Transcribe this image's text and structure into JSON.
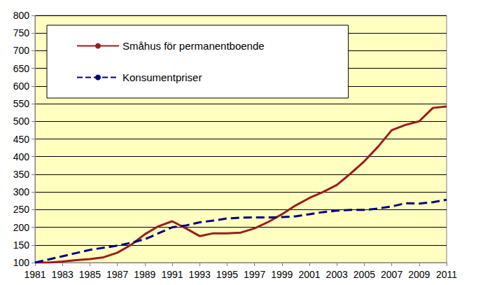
{
  "chart_data": {
    "type": "line",
    "x": [
      1981,
      1982,
      1983,
      1984,
      1985,
      1986,
      1987,
      1988,
      1989,
      1990,
      1991,
      1992,
      1993,
      1994,
      1995,
      1996,
      1997,
      1998,
      1999,
      2000,
      2001,
      2002,
      2003,
      2004,
      2005,
      2006,
      2007,
      2008,
      2009,
      2010,
      2011
    ],
    "series": [
      {
        "name": "Småhus för permanentboende",
        "color": "#9b1c1c",
        "line_style": "solid",
        "values": [
          100,
          100,
          103,
          107,
          110,
          115,
          128,
          150,
          180,
          203,
          217,
          197,
          175,
          183,
          183,
          185,
          197,
          215,
          237,
          262,
          283,
          300,
          320,
          352,
          387,
          428,
          475,
          490,
          500,
          538,
          542
        ]
      },
      {
        "name": "Konsumentpriser",
        "color": "#000080",
        "line_style": "dashed",
        "values": [
          100,
          109,
          118,
          127,
          136,
          142,
          148,
          156,
          166,
          183,
          200,
          205,
          214,
          219,
          225,
          227,
          228,
          228,
          229,
          231,
          237,
          243,
          247,
          249,
          249,
          253,
          259,
          268,
          267,
          271,
          278
        ]
      }
    ],
    "xlim": [
      1981,
      2011
    ],
    "xticks": [
      1981,
      1983,
      1985,
      1987,
      1989,
      1991,
      1993,
      1995,
      1997,
      1999,
      2001,
      2003,
      2005,
      2007,
      2009,
      2011
    ],
    "ylim": [
      100,
      800
    ],
    "yticks": [
      100,
      150,
      200,
      250,
      300,
      350,
      400,
      450,
      500,
      550,
      600,
      650,
      700,
      750,
      800
    ],
    "grid": true,
    "legend": "top-left"
  }
}
